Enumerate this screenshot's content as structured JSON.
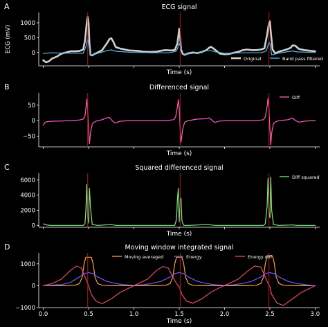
{
  "chart_data": [
    {
      "panel_letter": "A",
      "type": "line",
      "title": "ECG signal",
      "xlabel": "Time (s)",
      "ylabel": "ECG (mV)",
      "xlim": [
        -0.05,
        3.05
      ],
      "ylim": [
        -450,
        1350
      ],
      "yticks": [
        0,
        500,
        1000
      ],
      "ytick_labels": [
        "0",
        "500",
        "1000"
      ],
      "xticks": [
        0.0,
        0.5,
        1.0,
        1.5,
        2.0,
        2.5,
        3.0
      ],
      "grid": false,
      "legend": "bottom-right",
      "vlines": [
        0.49,
        1.51,
        2.49
      ],
      "series": [
        {
          "name": "Original",
          "color": "#d0d0d0",
          "x": [
            0.0,
            0.03,
            0.06,
            0.1,
            0.15,
            0.2,
            0.25,
            0.3,
            0.35,
            0.4,
            0.44,
            0.46,
            0.48,
            0.49,
            0.5,
            0.51,
            0.52,
            0.54,
            0.56,
            0.6,
            0.65,
            0.7,
            0.73,
            0.75,
            0.77,
            0.8,
            0.85,
            0.9,
            0.95,
            1.0,
            1.05,
            1.1,
            1.15,
            1.2,
            1.25,
            1.3,
            1.35,
            1.4,
            1.45,
            1.48,
            1.5,
            1.51,
            1.52,
            1.54,
            1.56,
            1.6,
            1.65,
            1.7,
            1.75,
            1.8,
            1.83,
            1.85,
            1.87,
            1.9,
            1.95,
            2.0,
            2.05,
            2.1,
            2.15,
            2.2,
            2.25,
            2.3,
            2.35,
            2.4,
            2.44,
            2.47,
            2.49,
            2.5,
            2.51,
            2.53,
            2.56,
            2.6,
            2.65,
            2.7,
            2.73,
            2.75,
            2.78,
            2.82,
            2.88,
            2.94,
            3.0
          ],
          "y": [
            -260,
            -330,
            -300,
            -200,
            -140,
            -40,
            0,
            40,
            40,
            50,
            100,
            400,
            1000,
            1200,
            1000,
            300,
            -80,
            -100,
            -60,
            0,
            80,
            300,
            450,
            480,
            380,
            180,
            130,
            100,
            70,
            60,
            50,
            30,
            20,
            20,
            30,
            60,
            80,
            70,
            80,
            300,
            800,
            500,
            100,
            -50,
            -80,
            -30,
            0,
            -20,
            20,
            80,
            160,
            190,
            150,
            80,
            -40,
            -60,
            -50,
            -10,
            20,
            80,
            100,
            80,
            80,
            100,
            140,
            600,
            1000,
            1050,
            700,
            100,
            -30,
            30,
            70,
            120,
            160,
            240,
            230,
            120,
            80,
            60,
            40
          ]
        },
        {
          "name": "Band pass filtered",
          "color": "#5cbcf0",
          "x": [
            0.0,
            0.1,
            0.2,
            0.3,
            0.4,
            0.44,
            0.47,
            0.49,
            0.5,
            0.52,
            0.55,
            0.6,
            0.7,
            0.75,
            0.8,
            0.9,
            1.0,
            1.1,
            1.2,
            1.3,
            1.4,
            1.47,
            1.5,
            1.52,
            1.55,
            1.6,
            1.7,
            1.8,
            1.85,
            1.9,
            2.0,
            2.1,
            2.2,
            2.3,
            2.4,
            2.46,
            2.49,
            2.5,
            2.52,
            2.55,
            2.6,
            2.7,
            2.75,
            2.8,
            2.9,
            3.0
          ],
          "y": [
            -30,
            -10,
            -20,
            -20,
            -20,
            -30,
            200,
            450,
            300,
            -100,
            -80,
            -30,
            60,
            90,
            40,
            20,
            0,
            0,
            -10,
            -10,
            -10,
            50,
            300,
            150,
            -80,
            -50,
            0,
            60,
            60,
            20,
            -30,
            -20,
            -10,
            -10,
            -10,
            50,
            350,
            300,
            -80,
            -60,
            -20,
            30,
            50,
            20,
            10,
            0
          ]
        }
      ]
    },
    {
      "panel_letter": "B",
      "type": "line",
      "title": "Differenced signal",
      "xlabel": "Time (s)",
      "ylabel": "",
      "xlim": [
        -0.05,
        3.05
      ],
      "ylim": [
        -85,
        90
      ],
      "yticks": [
        -50,
        0,
        50
      ],
      "ytick_labels": [
        "−50",
        "0",
        "50"
      ],
      "xticks": [
        0.0,
        0.5,
        1.0,
        1.5,
        2.0,
        2.5,
        3.0
      ],
      "grid": false,
      "legend": "top-right",
      "vlines": [
        0.49,
        1.51,
        2.49
      ],
      "series": [
        {
          "name": "Diff",
          "color": "#ff5cb8",
          "x": [
            0.0,
            0.02,
            0.05,
            0.1,
            0.2,
            0.3,
            0.4,
            0.44,
            0.46,
            0.47,
            0.48,
            0.49,
            0.5,
            0.51,
            0.52,
            0.54,
            0.56,
            0.6,
            0.65,
            0.7,
            0.73,
            0.76,
            0.79,
            0.85,
            0.95,
            1.05,
            1.15,
            1.25,
            1.35,
            1.44,
            1.46,
            1.48,
            1.49,
            1.5,
            1.51,
            1.52,
            1.54,
            1.56,
            1.6,
            1.7,
            1.8,
            1.83,
            1.86,
            1.89,
            1.95,
            2.05,
            2.15,
            2.25,
            2.35,
            2.43,
            2.45,
            2.47,
            2.48,
            2.49,
            2.5,
            2.51,
            2.52,
            2.54,
            2.56,
            2.6,
            2.7,
            2.75,
            2.78,
            2.82,
            2.9,
            3.0
          ],
          "y": [
            -15,
            -5,
            -3,
            -2,
            -1,
            0,
            2,
            5,
            15,
            40,
            70,
            30,
            -30,
            -75,
            -40,
            -12,
            -5,
            0,
            3,
            9,
            10,
            0,
            -8,
            -2,
            0,
            0,
            0,
            0,
            0,
            3,
            12,
            45,
            68,
            40,
            -25,
            -70,
            -25,
            -5,
            0,
            5,
            6,
            9,
            2,
            -6,
            -1,
            0,
            0,
            0,
            0,
            3,
            12,
            45,
            72,
            40,
            -30,
            -78,
            -40,
            -10,
            -4,
            0,
            3,
            8,
            1,
            -5,
            -1,
            0
          ]
        }
      ]
    },
    {
      "panel_letter": "C",
      "type": "line",
      "title": "Squared differenced signal",
      "xlabel": "Time (s)",
      "ylabel": "",
      "xlim": [
        -0.05,
        3.05
      ],
      "ylim": [
        -250,
        6900
      ],
      "yticks": [
        0,
        2000,
        4000,
        6000
      ],
      "ytick_labels": [
        "0",
        "2000",
        "4000",
        "6000"
      ],
      "xticks": [
        0.0,
        0.5,
        1.0,
        1.5,
        2.0,
        2.5,
        3.0
      ],
      "grid": false,
      "legend": "top-right",
      "vlines": [
        0.49,
        1.51,
        2.49
      ],
      "series": [
        {
          "name": "Diff squared",
          "color": "#7fe87f",
          "x": [
            0.0,
            0.03,
            0.08,
            0.3,
            0.44,
            0.46,
            0.47,
            0.48,
            0.49,
            0.5,
            0.51,
            0.52,
            0.54,
            0.6,
            0.75,
            0.8,
            1.0,
            1.45,
            1.47,
            1.48,
            1.49,
            1.5,
            1.51,
            1.52,
            1.53,
            1.55,
            1.6,
            1.8,
            1.85,
            1.9,
            2.0,
            2.43,
            2.45,
            2.47,
            2.48,
            2.49,
            2.5,
            2.51,
            2.52,
            2.54,
            2.6,
            2.75,
            2.8,
            3.0
          ],
          "y": [
            200,
            60,
            0,
            0,
            0,
            200,
            2000,
            5400,
            1000,
            300,
            4900,
            2500,
            100,
            0,
            100,
            0,
            0,
            0,
            800,
            3500,
            4900,
            500,
            3000,
            3600,
            600,
            0,
            0,
            100,
            50,
            0,
            0,
            0,
            200,
            2500,
            6200,
            1500,
            1000,
            6400,
            2000,
            100,
            0,
            50,
            0,
            0
          ]
        }
      ]
    },
    {
      "panel_letter": "D",
      "type": "line",
      "title": "Moving window integrated signal",
      "xlabel": "Time (s)",
      "ylabel": "",
      "xlim": [
        -0.05,
        3.05
      ],
      "ylim": [
        -1000,
        1500
      ],
      "yticks": [
        -1000,
        0,
        1000
      ],
      "ytick_labels": [
        "−1000",
        "0",
        "1000"
      ],
      "xticks": [
        0.0,
        0.5,
        1.0,
        1.5,
        2.0,
        2.5,
        3.0
      ],
      "xtick_labels": [
        "0.0",
        "0.5",
        "1.0",
        "1.5",
        "2.0",
        "2.5",
        "3.0"
      ],
      "grid": false,
      "legend": "top-center",
      "vlines": [
        0.49,
        1.51,
        2.49
      ],
      "series": [
        {
          "name": "Moving averaged",
          "color": "#ffa030",
          "x": [
            0.0,
            0.2,
            0.35,
            0.4,
            0.43,
            0.45,
            0.47,
            0.53,
            0.55,
            0.57,
            0.6,
            0.65,
            0.8,
            1.0,
            1.2,
            1.35,
            1.4,
            1.43,
            1.45,
            1.47,
            1.53,
            1.55,
            1.57,
            1.6,
            1.65,
            1.8,
            2.0,
            2.2,
            2.35,
            2.4,
            2.43,
            2.45,
            2.47,
            2.53,
            2.55,
            2.57,
            2.6,
            2.65,
            2.8,
            3.0
          ],
          "y": [
            0,
            0,
            20,
            100,
            400,
            1000,
            1300,
            1300,
            1000,
            400,
            100,
            20,
            0,
            0,
            0,
            20,
            100,
            400,
            1000,
            1300,
            1300,
            1000,
            400,
            100,
            20,
            0,
            0,
            0,
            20,
            100,
            400,
            1000,
            1350,
            1350,
            1000,
            400,
            100,
            20,
            0,
            0
          ]
        },
        {
          "name": "Energy",
          "color": "#6a5cff",
          "x": [
            0.0,
            0.2,
            0.3,
            0.4,
            0.45,
            0.5,
            0.55,
            0.6,
            0.7,
            0.8,
            0.9,
            1.0,
            1.1,
            1.2,
            1.3,
            1.4,
            1.45,
            1.5,
            1.55,
            1.6,
            1.7,
            1.8,
            1.9,
            2.0,
            2.1,
            2.2,
            2.3,
            2.4,
            2.45,
            2.5,
            2.55,
            2.6,
            2.7,
            2.8,
            2.9,
            3.0
          ],
          "y": [
            0,
            50,
            150,
            400,
            550,
            600,
            550,
            400,
            200,
            100,
            40,
            20,
            40,
            100,
            200,
            400,
            550,
            600,
            550,
            400,
            200,
            100,
            40,
            20,
            40,
            100,
            200,
            400,
            550,
            600,
            550,
            400,
            200,
            100,
            40,
            0
          ]
        },
        {
          "name": "Energy diff",
          "color": "#e84a5f",
          "x": [
            0.0,
            0.1,
            0.2,
            0.3,
            0.37,
            0.42,
            0.47,
            0.5,
            0.53,
            0.58,
            0.65,
            0.75,
            0.85,
            0.95,
            1.05,
            1.15,
            1.25,
            1.32,
            1.38,
            1.43,
            1.47,
            1.5,
            1.53,
            1.58,
            1.65,
            1.75,
            1.85,
            1.95,
            2.05,
            2.15,
            2.25,
            2.33,
            2.4,
            2.45,
            2.48,
            2.5,
            2.52,
            2.58,
            2.65,
            2.75,
            2.85,
            2.95,
            3.0
          ],
          "y": [
            0,
            100,
            300,
            700,
            900,
            800,
            300,
            0,
            -400,
            -700,
            -820,
            -600,
            -300,
            -100,
            100,
            300,
            700,
            880,
            800,
            400,
            100,
            -50,
            -400,
            -700,
            -800,
            -600,
            -300,
            -80,
            100,
            300,
            650,
            900,
            850,
            400,
            100,
            -50,
            -400,
            -800,
            -900,
            -600,
            -300,
            -100,
            0
          ]
        }
      ]
    }
  ]
}
